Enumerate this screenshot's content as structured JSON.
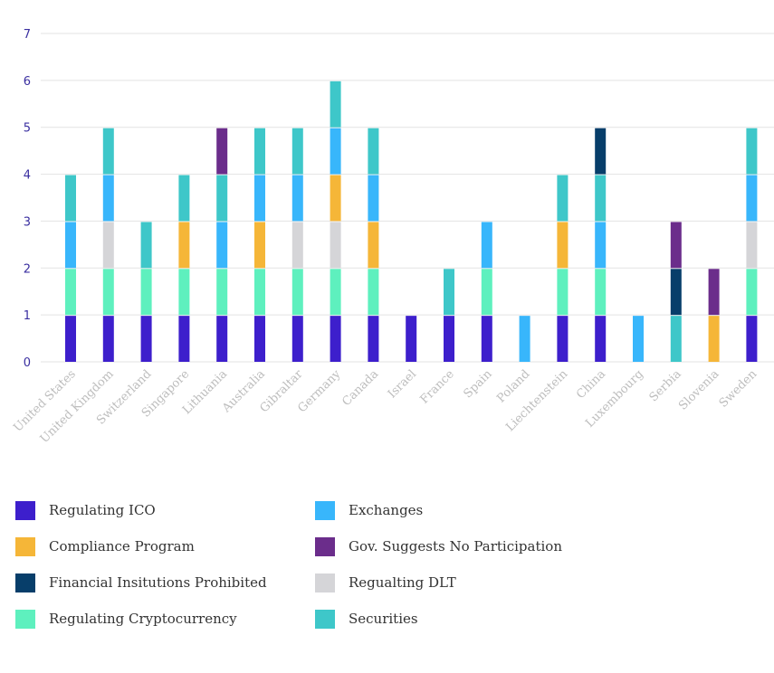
{
  "chart_data": {
    "type": "bar",
    "stacked": true,
    "title": "",
    "xlabel": "",
    "ylabel": "",
    "ylim": [
      0,
      7
    ],
    "yticks": [
      "0",
      "1",
      "2",
      "3",
      "4",
      "5",
      "6",
      "7"
    ],
    "grid": true,
    "legend_position": "bottom",
    "categories": [
      "United States",
      "United Kingdom",
      "Switzerland",
      "Singapore",
      "Lithuania",
      "Australia",
      "Gibraltar",
      "Germany",
      "Canada",
      "Israel",
      "France",
      "Spain",
      "Poland",
      "Liechtenstein",
      "China",
      "Luxembourg",
      "Serbia",
      "Slovenia",
      "Sweden"
    ],
    "series": [
      {
        "name": "Regulating ICO",
        "color": "#3d1fcc",
        "values": [
          1,
          1,
          1,
          1,
          1,
          1,
          1,
          1,
          1,
          1,
          1,
          1,
          0,
          1,
          1,
          0,
          0,
          0,
          1
        ]
      },
      {
        "name": "Compliance Program",
        "color": "#f5b638",
        "values": [
          0,
          0,
          0,
          1,
          0,
          1,
          0,
          1,
          1,
          0,
          0,
          0,
          0,
          1,
          0,
          0,
          0,
          1,
          0
        ]
      },
      {
        "name": "Financial Insitutions Prohibited",
        "color": "#073e6a",
        "values": [
          0,
          0,
          0,
          0,
          0,
          0,
          0,
          0,
          0,
          0,
          0,
          0,
          0,
          0,
          1,
          0,
          1,
          0,
          0
        ]
      },
      {
        "name": "Regulating Cryptocurrency",
        "color": "#5ef0be",
        "values": [
          1,
          1,
          1,
          1,
          1,
          1,
          1,
          1,
          1,
          0,
          0,
          1,
          0,
          1,
          1,
          0,
          0,
          0,
          1
        ]
      },
      {
        "name": "Exchanges",
        "color": "#38b6fb",
        "values": [
          1,
          1,
          0,
          0,
          1,
          1,
          1,
          1,
          1,
          0,
          0,
          1,
          1,
          0,
          1,
          1,
          0,
          0,
          1
        ]
      },
      {
        "name": "Gov. Suggests No Participation",
        "color": "#6b2d8b",
        "values": [
          0,
          0,
          0,
          0,
          1,
          0,
          0,
          0,
          0,
          0,
          0,
          0,
          0,
          0,
          0,
          0,
          1,
          1,
          0
        ]
      },
      {
        "name": "Regualting DLT",
        "color": "#d5d5d8",
        "values": [
          0,
          1,
          0,
          0,
          0,
          0,
          1,
          1,
          0,
          0,
          0,
          0,
          0,
          0,
          0,
          0,
          0,
          0,
          1
        ]
      },
      {
        "name": "Securities",
        "color": "#3ec7c9",
        "values": [
          1,
          1,
          1,
          1,
          1,
          1,
          1,
          1,
          1,
          0,
          1,
          0,
          0,
          1,
          1,
          0,
          1,
          0,
          1
        ]
      }
    ],
    "stack_order": [
      [
        "Regulating ICO",
        "Regulating Cryptocurrency",
        "Exchanges",
        "Securities"
      ],
      [
        "Regulating ICO",
        "Regulating Cryptocurrency",
        "Regualting DLT",
        "Exchanges",
        "Securities"
      ],
      [
        "Regulating ICO",
        "Regulating Cryptocurrency",
        "Securities"
      ],
      [
        "Regulating ICO",
        "Regulating Cryptocurrency",
        "Compliance Program",
        "Securities"
      ],
      [
        "Regulating ICO",
        "Regulating Cryptocurrency",
        "Exchanges",
        "Securities",
        "Gov. Suggests No Participation"
      ],
      [
        "Regulating ICO",
        "Regulating Cryptocurrency",
        "Compliance Program",
        "Exchanges",
        "Securities"
      ],
      [
        "Regulating ICO",
        "Regulating Cryptocurrency",
        "Regualting DLT",
        "Exchanges",
        "Securities"
      ],
      [
        "Regulating ICO",
        "Regulating Cryptocurrency",
        "Regualting DLT",
        "Compliance Program",
        "Exchanges",
        "Securities"
      ],
      [
        "Regulating ICO",
        "Regulating Cryptocurrency",
        "Compliance Program",
        "Exchanges",
        "Securities"
      ],
      [
        "Regulating ICO"
      ],
      [
        "Regulating ICO",
        "Securities"
      ],
      [
        "Regulating ICO",
        "Regulating Cryptocurrency",
        "Exchanges"
      ],
      [
        "Exchanges"
      ],
      [
        "Regulating ICO",
        "Regulating Cryptocurrency",
        "Compliance Program",
        "Securities"
      ],
      [
        "Regulating ICO",
        "Regulating Cryptocurrency",
        "Exchanges",
        "Securities",
        "Financial Insitutions Prohibited"
      ],
      [
        "Exchanges"
      ],
      [
        "Securities",
        "Financial Insitutions Prohibited",
        "Gov. Suggests No Participation"
      ],
      [
        "Compliance Program",
        "Gov. Suggests No Participation"
      ],
      [
        "Regulating ICO",
        "Regulating Cryptocurrency",
        "Regualting DLT",
        "Exchanges",
        "Securities"
      ]
    ]
  },
  "legend": {
    "items": [
      {
        "label": "Regulating ICO",
        "color": "#3d1fcc"
      },
      {
        "label": "Exchanges",
        "color": "#38b6fb"
      },
      {
        "label": "Compliance Program",
        "color": "#f5b638"
      },
      {
        "label": "Gov. Suggests No Participation",
        "color": "#6b2d8b"
      },
      {
        "label": "Financial Insitutions Prohibited",
        "color": "#073e6a"
      },
      {
        "label": "Regualting DLT",
        "color": "#d5d5d8"
      },
      {
        "label": "Regulating Cryptocurrency",
        "color": "#5ef0be"
      },
      {
        "label": "Securities",
        "color": "#3ec7c9"
      }
    ]
  }
}
